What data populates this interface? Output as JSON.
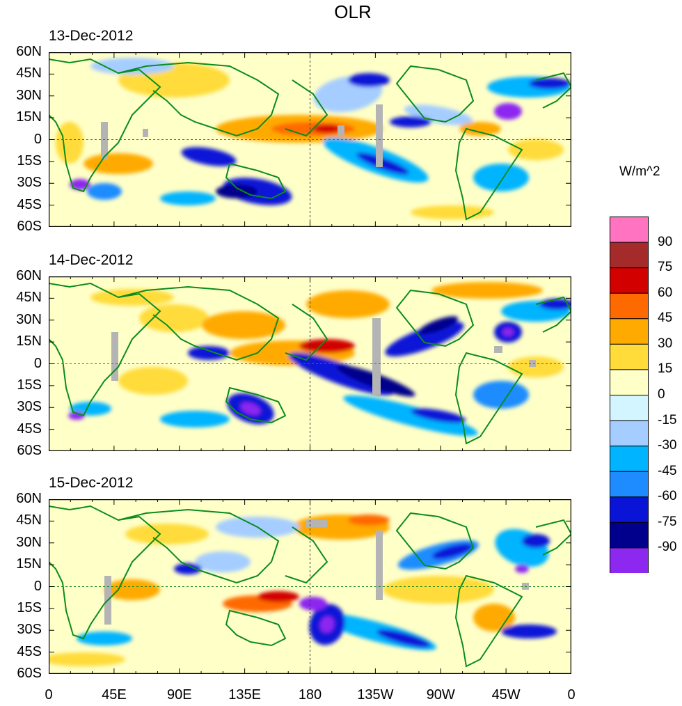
{
  "title": "OLR",
  "units_label": "W/m^2",
  "panels": [
    {
      "date": "13-Dec-2012"
    },
    {
      "date": "14-Dec-2012"
    },
    {
      "date": "15-Dec-2012"
    }
  ],
  "lat_labels": [
    "60N",
    "45N",
    "30N",
    "15N",
    "0",
    "15S",
    "30S",
    "45S",
    "60S"
  ],
  "lon_labels": [
    "0",
    "45E",
    "90E",
    "135E",
    "180",
    "135W",
    "90W",
    "45W",
    "0"
  ],
  "colorbar": {
    "levels": [
      "90",
      "75",
      "60",
      "45",
      "30",
      "15",
      "0",
      "-15",
      "-30",
      "-45",
      "-60",
      "-75",
      "-90"
    ],
    "colors": [
      "#ff73c0",
      "#a52a2a",
      "#d30000",
      "#ff6a00",
      "#ffaa00",
      "#ffdc3a",
      "#ffffc8",
      "#d2f5ff",
      "#a5cdff",
      "#00b4ff",
      "#1e8cff",
      "#0a14d7",
      "#00008c",
      "#8c28f0"
    ]
  },
  "colors": {
    "coast": "#0a8c1e",
    "missing": "#b4b4b4",
    "equator": "#1e8c1e"
  }
}
